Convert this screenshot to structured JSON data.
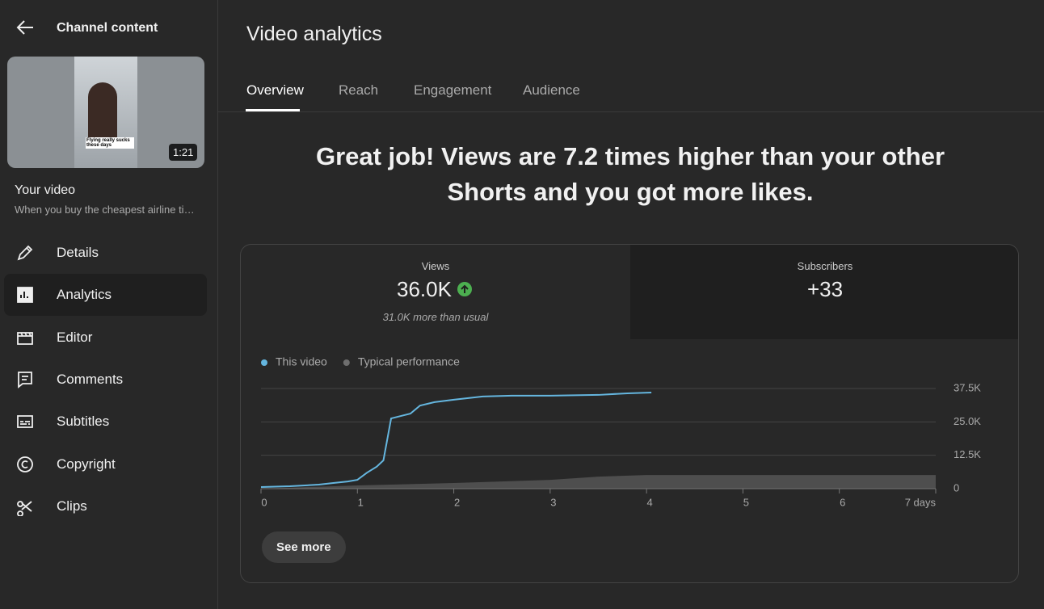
{
  "sidebar": {
    "back_label": "Channel content",
    "thumbnail_caption": "Flying really sucks these days",
    "duration": "1:21",
    "video_title": "Your video",
    "video_description": "When you buy the cheapest airline ti…",
    "nav": [
      "Details",
      "Analytics",
      "Editor",
      "Comments",
      "Subtitles",
      "Copyright",
      "Clips"
    ]
  },
  "header": {
    "title": "Video analytics",
    "tabs": [
      "Overview",
      "Reach",
      "Engagement",
      "Audience"
    ]
  },
  "headline": "Great job! Views are 7.2 times higher than your other Shorts and you got more likes.",
  "metrics": [
    {
      "label": "Views",
      "value": "36.0K",
      "note": "31.0K more than usual"
    },
    {
      "label": "Subscribers",
      "value": "+33"
    }
  ],
  "chart_data": {
    "type": "line",
    "series": [
      {
        "name": "This video",
        "color": "#65b6df",
        "x": [
          0,
          0.3,
          0.6,
          0.75,
          0.9,
          1.0,
          1.1,
          1.2,
          1.27,
          1.35,
          1.45,
          1.55,
          1.65,
          1.8,
          2.0,
          2.3,
          2.6,
          3.0,
          3.5,
          3.8,
          4.05
        ],
        "values": [
          600,
          900,
          1500,
          2100,
          2700,
          3300,
          6000,
          8200,
          10600,
          26300,
          27200,
          28100,
          31100,
          32400,
          33300,
          34500,
          34800,
          34800,
          35100,
          35700,
          36000
        ]
      },
      {
        "name": "Typical performance",
        "color": "#6e6e6e",
        "x": [
          0,
          1,
          2,
          3,
          3.5,
          4,
          5,
          6,
          7
        ],
        "values": [
          0,
          1200,
          2100,
          3300,
          4500,
          5100,
          5100,
          5100,
          5100
        ]
      }
    ],
    "xlim": [
      0,
      7
    ],
    "xticks": [
      0,
      1,
      2,
      3,
      4,
      5,
      6,
      {
        "value": 7,
        "label": "7 days"
      }
    ],
    "ylim": [
      0,
      37500
    ],
    "yticks": [
      0,
      {
        "value": 12500,
        "label": "12.5K"
      },
      {
        "value": 25000,
        "label": "25.0K"
      },
      {
        "value": 37500,
        "label": "37.5K"
      }
    ],
    "grid": true
  },
  "button": "See more"
}
